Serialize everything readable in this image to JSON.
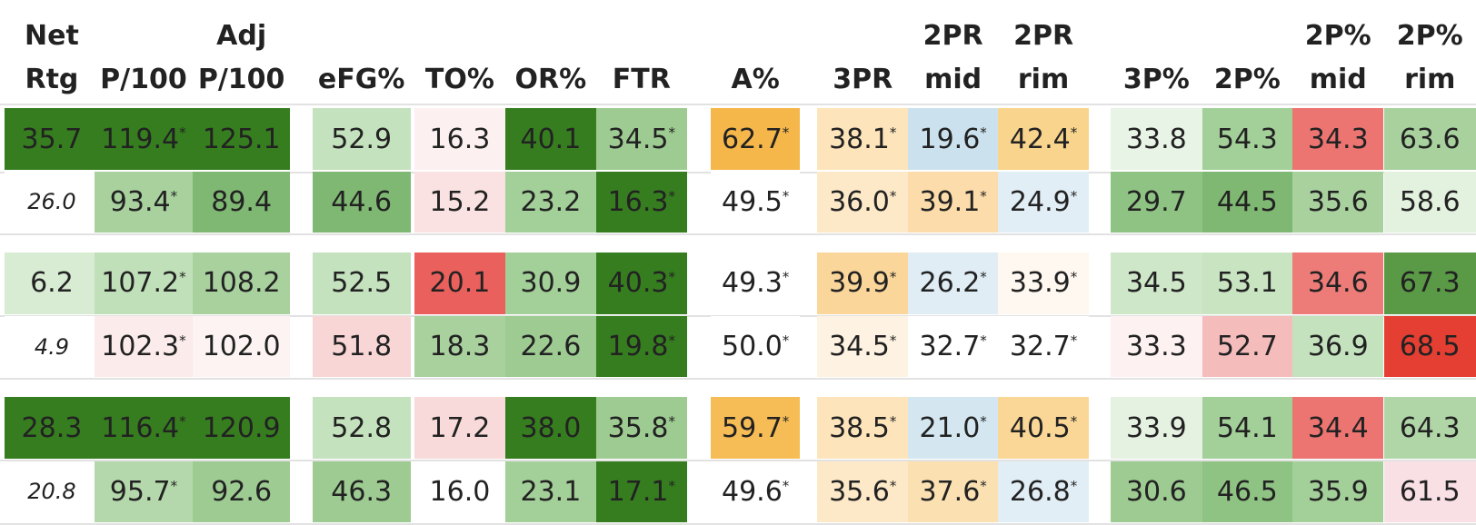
{
  "table": {
    "columns": [
      {
        "lines": [
          "Net",
          "Rtg"
        ]
      },
      {
        "lines": [
          "P/100"
        ]
      },
      {
        "lines": [
          "Adj",
          "P/100"
        ]
      },
      {
        "lines": [
          "eFG%"
        ]
      },
      {
        "lines": [
          "TO%"
        ]
      },
      {
        "lines": [
          "OR%"
        ]
      },
      {
        "lines": [
          "FTR"
        ]
      },
      {
        "lines": [
          "A%"
        ]
      },
      {
        "lines": [
          "3PR"
        ]
      },
      {
        "lines": [
          "2PR",
          "mid"
        ]
      },
      {
        "lines": [
          "2PR",
          "rim"
        ]
      },
      {
        "lines": [
          "3P%"
        ]
      },
      {
        "lines": [
          "2P%"
        ]
      },
      {
        "lines": [
          "2P%",
          "mid"
        ]
      },
      {
        "lines": [
          "2P%",
          "rim"
        ]
      }
    ],
    "groups": [
      [
        [
          {
            "text": "35.7",
            "bg": "#367d1f"
          },
          {
            "text": "119.4",
            "sup": "*",
            "bg": "#367d1f"
          },
          {
            "text": "125.1",
            "bg": "#367d1f"
          },
          {
            "text": "52.9",
            "bg": "#c4e2bd"
          },
          {
            "text": "16.3",
            "bg": "#fdf0f0"
          },
          {
            "text": "40.1",
            "bg": "#367d1f"
          },
          {
            "text": "34.5",
            "sup": "*",
            "bg": "#9dcb92"
          },
          {
            "text": "62.7",
            "sup": "*",
            "bg": "#f5b64a"
          },
          {
            "text": "38.1",
            "sup": "*",
            "bg": "#fde4bb"
          },
          {
            "text": "19.6",
            "sup": "*",
            "bg": "#cbe2ee"
          },
          {
            "text": "42.4",
            "sup": "*",
            "bg": "#f9d48c"
          },
          {
            "text": "33.8",
            "bg": "#e8f4e5"
          },
          {
            "text": "54.3",
            "bg": "#a3cf99"
          },
          {
            "text": "34.3",
            "bg": "#ec7471"
          },
          {
            "text": "63.6",
            "bg": "#a8d19e"
          }
        ],
        [
          {
            "text": "26.0",
            "bg": "#ffffff",
            "italic": true
          },
          {
            "text": "93.4",
            "sup": "*",
            "bg": "#a8d19e"
          },
          {
            "text": "89.4",
            "bg": "#7fb872"
          },
          {
            "text": "44.6",
            "bg": "#7fb872"
          },
          {
            "text": "15.2",
            "bg": "#fbe2e2"
          },
          {
            "text": "23.2",
            "bg": "#a3cf99"
          },
          {
            "text": "16.3",
            "sup": "*",
            "bg": "#367d1f"
          },
          {
            "text": "49.5",
            "sup": "*",
            "bg": "#ffffff"
          },
          {
            "text": "36.0",
            "sup": "*",
            "bg": "#fde9c8"
          },
          {
            "text": "39.1",
            "sup": "*",
            "bg": "#fbdcaa"
          },
          {
            "text": "24.9",
            "sup": "*",
            "bg": "#e2eef5"
          },
          {
            "text": "29.7",
            "bg": "#8fc383"
          },
          {
            "text": "44.5",
            "bg": "#7fb872"
          },
          {
            "text": "35.6",
            "bg": "#a8d19e"
          },
          {
            "text": "58.6",
            "bg": "#e3f1df"
          }
        ]
      ],
      [
        [
          {
            "text": "6.2",
            "bg": "#d8ecd3"
          },
          {
            "text": "107.2",
            "sup": "*",
            "bg": "#c0e0b9"
          },
          {
            "text": "108.2",
            "bg": "#a8d19e"
          },
          {
            "text": "52.5",
            "bg": "#c4e2bd"
          },
          {
            "text": "20.1",
            "bg": "#ea605c"
          },
          {
            "text": "30.9",
            "bg": "#a3cf99"
          },
          {
            "text": "40.3",
            "sup": "*",
            "bg": "#367d1f"
          },
          {
            "text": "49.3",
            "sup": "*",
            "bg": "#ffffff"
          },
          {
            "text": "39.9",
            "sup": "*",
            "bg": "#fbd69a"
          },
          {
            "text": "26.2",
            "sup": "*",
            "bg": "#e0edf5"
          },
          {
            "text": "33.9",
            "sup": "*",
            "bg": "#fff8f0"
          },
          {
            "text": "34.5",
            "bg": "#cfe7c9"
          },
          {
            "text": "53.1",
            "bg": "#c8e4c1"
          },
          {
            "text": "34.6",
            "bg": "#ed7c79"
          },
          {
            "text": "67.3",
            "bg": "#5a9a46"
          }
        ],
        [
          {
            "text": "4.9",
            "bg": "#ffffff",
            "italic": true
          },
          {
            "text": "102.3",
            "sup": "*",
            "bg": "#fcebeb"
          },
          {
            "text": "102.0",
            "bg": "#fdf3f3"
          },
          {
            "text": "51.8",
            "bg": "#f8d6d6"
          },
          {
            "text": "18.3",
            "bg": "#a8d19e"
          },
          {
            "text": "22.6",
            "bg": "#9dcb92"
          },
          {
            "text": "19.8",
            "sup": "*",
            "bg": "#367d1f"
          },
          {
            "text": "50.0",
            "sup": "*",
            "bg": "#ffffff"
          },
          {
            "text": "34.5",
            "sup": "*",
            "bg": "#fef3e2"
          },
          {
            "text": "32.7",
            "sup": "*",
            "bg": "#ffffff"
          },
          {
            "text": "32.7",
            "sup": "*",
            "bg": "#ffffff"
          },
          {
            "text": "33.3",
            "bg": "#fdf1f1"
          },
          {
            "text": "52.7",
            "bg": "#f5bcbc"
          },
          {
            "text": "36.9",
            "bg": "#c4e2bd"
          },
          {
            "text": "68.5",
            "bg": "#e53e32"
          }
        ]
      ],
      [
        [
          {
            "text": "28.3",
            "bg": "#367d1f"
          },
          {
            "text": "116.4",
            "sup": "*",
            "bg": "#367d1f"
          },
          {
            "text": "120.9",
            "bg": "#367d1f"
          },
          {
            "text": "52.8",
            "bg": "#c4e2bd"
          },
          {
            "text": "17.2",
            "bg": "#f9dada"
          },
          {
            "text": "38.0",
            "bg": "#367d1f"
          },
          {
            "text": "35.8",
            "sup": "*",
            "bg": "#9dcb92"
          },
          {
            "text": "59.7",
            "sup": "*",
            "bg": "#f6bd56"
          },
          {
            "text": "38.5",
            "sup": "*",
            "bg": "#fde4bb"
          },
          {
            "text": "21.0",
            "sup": "*",
            "bg": "#d4e7f1"
          },
          {
            "text": "40.5",
            "sup": "*",
            "bg": "#fad797"
          },
          {
            "text": "33.9",
            "bg": "#e5f2e2"
          },
          {
            "text": "54.1",
            "bg": "#a3cf99"
          },
          {
            "text": "34.4",
            "bg": "#ec7471"
          },
          {
            "text": "64.3",
            "bg": "#b0d5a6"
          }
        ],
        [
          {
            "text": "20.8",
            "bg": "#ffffff",
            "italic": true
          },
          {
            "text": "95.7",
            "sup": "*",
            "bg": "#b4d8ab"
          },
          {
            "text": "92.6",
            "bg": "#9dcb92"
          },
          {
            "text": "46.3",
            "bg": "#9dcb92"
          },
          {
            "text": "16.0",
            "bg": "#ffffff"
          },
          {
            "text": "23.1",
            "bg": "#a3cf99"
          },
          {
            "text": "17.1",
            "sup": "*",
            "bg": "#367d1f"
          },
          {
            "text": "49.6",
            "sup": "*",
            "bg": "#ffffff"
          },
          {
            "text": "35.6",
            "sup": "*",
            "bg": "#fde9c8"
          },
          {
            "text": "37.6",
            "sup": "*",
            "bg": "#fbe0b2"
          },
          {
            "text": "26.8",
            "sup": "*",
            "bg": "#e2eef5"
          },
          {
            "text": "30.6",
            "bg": "#9dcb92"
          },
          {
            "text": "46.5",
            "bg": "#8fc383"
          },
          {
            "text": "35.9",
            "bg": "#a3cf99"
          },
          {
            "text": "61.5",
            "bg": "#f9e0e5"
          }
        ]
      ]
    ]
  }
}
